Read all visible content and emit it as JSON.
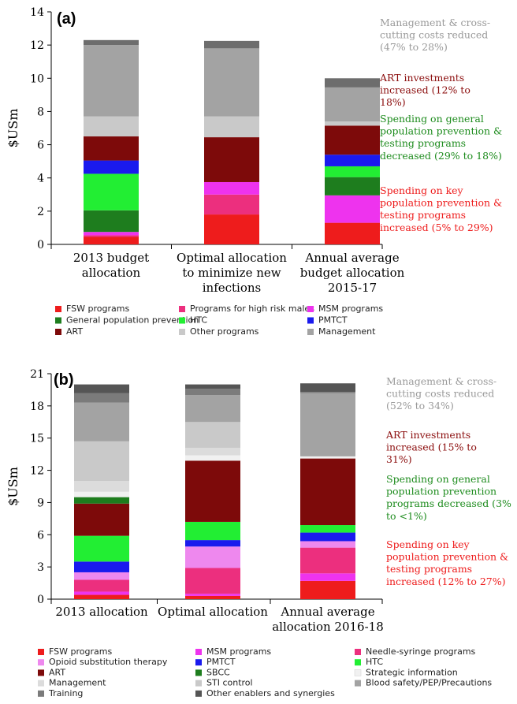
{
  "chart_data": [
    {
      "type": "bar",
      "stacked": true,
      "panel_label": "(a)",
      "ylabel": "$USm",
      "ylim": [
        0,
        14
      ],
      "yticks": [
        0,
        2,
        4,
        6,
        8,
        10,
        12,
        14
      ],
      "categories": [
        [
          "2013 budget",
          "allocation"
        ],
        [
          "Optimal allocation",
          "to minimize new",
          "infections"
        ],
        [
          "Annual average",
          "budget allocation",
          "2015-17"
        ]
      ],
      "series": [
        {
          "name": "FSW programs",
          "color": "#ee1c1c",
          "values": [
            0.45,
            1.8,
            1.3
          ]
        },
        {
          "name": "Programs for high risk males",
          "color": "#ec2f7e",
          "values": [
            0.1,
            1.2,
            0.0
          ]
        },
        {
          "name": "MSM programs",
          "color": "#ee33ee",
          "values": [
            0.2,
            0.75,
            1.65
          ]
        },
        {
          "name": "General population  prevention",
          "color": "#1e7d1e",
          "values": [
            1.3,
            0.0,
            1.1
          ]
        },
        {
          "name": "HTC",
          "color": "#22ee33",
          "values": [
            2.2,
            0.0,
            0.65
          ]
        },
        {
          "name": "PMTCT",
          "color": "#1a1aee",
          "values": [
            0.8,
            0.0,
            0.7
          ]
        },
        {
          "name": "ART",
          "color": "#7d0a0a",
          "values": [
            1.45,
            2.7,
            1.75
          ]
        },
        {
          "name": "Other programs",
          "color": "#c9c9c9",
          "values": [
            1.2,
            1.25,
            0.25
          ]
        },
        {
          "name": "Management",
          "color": "#a3a3a3",
          "values": [
            4.3,
            4.1,
            2.05
          ]
        },
        {
          "name": "",
          "color": "#6d6d6d",
          "values": [
            0.3,
            0.45,
            0.55
          ]
        }
      ],
      "legend_columns": 3,
      "annotations": [
        {
          "lines": [
            "Management & cross-",
            "cutting costs reduced",
            "(47% to 28%)"
          ],
          "color": "#9a9a9a"
        },
        {
          "lines": [
            "ART investments",
            "increased (12% to",
            "18%)"
          ],
          "color": "#8b0d0d"
        },
        {
          "lines": [
            "Spending on general",
            "population prevention &",
            "testing programs",
            "decreased (29% to 18%)"
          ],
          "color": "#1e8c1e"
        },
        {
          "lines": [
            "Spending on key",
            "population prevention &",
            "testing programs",
            "increased (5% to 29%)"
          ],
          "color": "#ee1c1c"
        }
      ]
    },
    {
      "type": "bar",
      "stacked": true,
      "panel_label": "(b)",
      "ylabel": "$USm",
      "ylim": [
        0,
        21
      ],
      "yticks": [
        0,
        3,
        6,
        9,
        12,
        15,
        18,
        21
      ],
      "categories": [
        [
          "2013 allocation"
        ],
        [
          "Optimal allocation"
        ],
        [
          "Annual average",
          "allocation 2016-18"
        ]
      ],
      "series": [
        {
          "name": "FSW programs",
          "color": "#ee1c1c",
          "values": [
            0.4,
            0.3,
            1.7
          ]
        },
        {
          "name": "MSM programs",
          "color": "#ee33ee",
          "values": [
            0.3,
            0.2,
            0.7
          ]
        },
        {
          "name": "Needle-syringe programs",
          "color": "#ec2f7e",
          "values": [
            1.1,
            2.4,
            2.4
          ]
        },
        {
          "name": "Opioid substitution therapy",
          "color": "#ee88ee",
          "values": [
            0.7,
            2.0,
            0.6
          ]
        },
        {
          "name": "PMTCT",
          "color": "#1a1aee",
          "values": [
            1.0,
            0.6,
            0.8
          ]
        },
        {
          "name": "HTC",
          "color": "#22ee33",
          "values": [
            2.4,
            1.7,
            0.7
          ]
        },
        {
          "name": "ART",
          "color": "#7d0a0a",
          "values": [
            3.0,
            5.7,
            6.2
          ]
        },
        {
          "name": "SBCC",
          "color": "#1e7d1e",
          "values": [
            0.6,
            0.0,
            0.0
          ]
        },
        {
          "name": "Strategic information",
          "color": "#f1f1f1",
          "values": [
            0.5,
            0.5,
            0.2
          ]
        },
        {
          "name": "Management",
          "color": "#dcdcdc",
          "values": [
            1.0,
            0.7,
            0.0
          ]
        },
        {
          "name": "STI control",
          "color": "#c9c9c9",
          "values": [
            3.7,
            2.4,
            0.0
          ]
        },
        {
          "name": "Blood safety/PEP/Precautions",
          "color": "#a3a3a3",
          "values": [
            3.6,
            2.5,
            5.9
          ]
        },
        {
          "name": "Training",
          "color": "#7b7b7b",
          "values": [
            0.9,
            0.6,
            0.1
          ]
        },
        {
          "name": "Other enablers and synergies",
          "color": "#555555",
          "values": [
            0.8,
            0.4,
            0.8
          ]
        }
      ],
      "legend_columns": 3,
      "annotations": [
        {
          "lines": [
            "Management & cross-",
            "cutting costs reduced",
            "(52% to 34%)"
          ],
          "color": "#9a9a9a"
        },
        {
          "lines": [
            "ART investments",
            "increased (15% to",
            "31%)"
          ],
          "color": "#8b0d0d"
        },
        {
          "lines": [
            "Spending on general",
            "population prevention",
            "programs decreased (3%",
            "to <1%)"
          ],
          "color": "#1e8c1e"
        },
        {
          "lines": [
            "Spending on key",
            "population prevention &",
            "testing programs",
            "increased (12% to 27%)"
          ],
          "color": "#ee1c1c"
        }
      ]
    }
  ]
}
